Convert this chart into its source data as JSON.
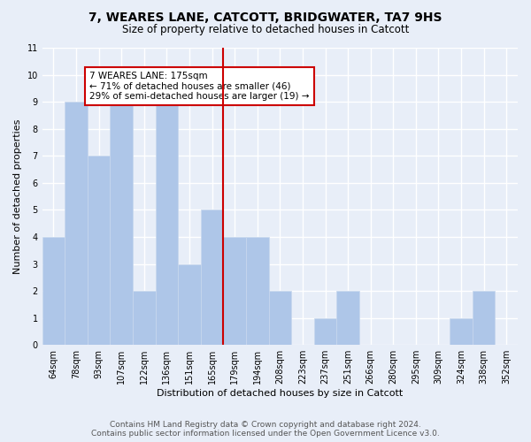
{
  "title": "7, WEARES LANE, CATCOTT, BRIDGWATER, TA7 9HS",
  "subtitle": "Size of property relative to detached houses in Catcott",
  "xlabel": "Distribution of detached houses by size in Catcott",
  "ylabel": "Number of detached properties",
  "bin_labels": [
    "64sqm",
    "78sqm",
    "93sqm",
    "107sqm",
    "122sqm",
    "136sqm",
    "151sqm",
    "165sqm",
    "179sqm",
    "194sqm",
    "208sqm",
    "223sqm",
    "237sqm",
    "251sqm",
    "266sqm",
    "280sqm",
    "295sqm",
    "309sqm",
    "324sqm",
    "338sqm",
    "352sqm"
  ],
  "bar_values": [
    4,
    9,
    7,
    9,
    2,
    9,
    3,
    5,
    4,
    4,
    2,
    0,
    1,
    2,
    0,
    0,
    0,
    0,
    1,
    2,
    0
  ],
  "bar_color": "#aec6e8",
  "bar_edge_color": "#c8d8ee",
  "highlight_line_x_label": "179sqm",
  "highlight_line_color": "#cc0000",
  "annotation_text": "7 WEARES LANE: 175sqm\n← 71% of detached houses are smaller (46)\n29% of semi-detached houses are larger (19) →",
  "annotation_box_color": "#ffffff",
  "annotation_box_edge_color": "#cc0000",
  "ylim": [
    0,
    11
  ],
  "yticks": [
    0,
    1,
    2,
    3,
    4,
    5,
    6,
    7,
    8,
    9,
    10,
    11
  ],
  "footer_line1": "Contains HM Land Registry data © Crown copyright and database right 2024.",
  "footer_line2": "Contains public sector information licensed under the Open Government Licence v3.0.",
  "bg_color": "#e8eef8",
  "plot_bg_color": "#e8eef8",
  "grid_color": "#ffffff",
  "title_fontsize": 10,
  "subtitle_fontsize": 8.5,
  "axis_label_fontsize": 8,
  "tick_fontsize": 7,
  "annotation_fontsize": 7.5,
  "footer_fontsize": 6.5
}
